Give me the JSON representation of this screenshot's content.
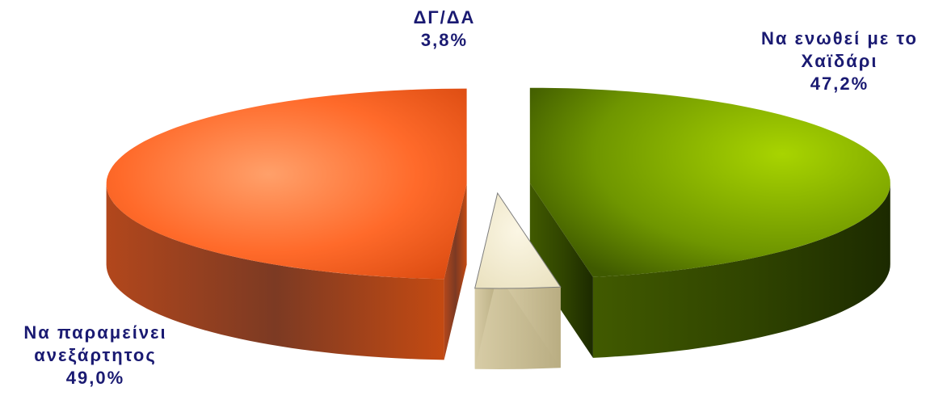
{
  "chart_data": {
    "type": "pie",
    "title": "",
    "slices": [
      {
        "label_lines": [
          "Να ενωθεί με το",
          "Χαϊδάρι"
        ],
        "value": 47.2,
        "value_label": "47,2%",
        "color": "#7fa800",
        "side_color": "#3e5400",
        "exploded": true
      },
      {
        "label_lines": [
          "ΔΓ/ΔΑ"
        ],
        "value": 3.8,
        "value_label": "3,8%",
        "color": "#f3ecd2",
        "side_color": "#d9cfa8",
        "exploded": true
      },
      {
        "label_lines": [
          "Να παραμείνει",
          "ανεξάρτητος"
        ],
        "value": 49.0,
        "value_label": "49,0%",
        "color": "#ff6a2a",
        "side_color": "#8a3a16",
        "exploded": true
      }
    ],
    "legend": "none",
    "data_labels": "outside",
    "view": "3d-exploded"
  }
}
